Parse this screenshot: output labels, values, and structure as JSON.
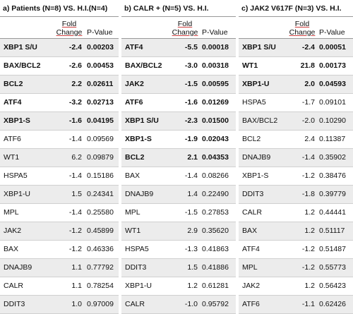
{
  "panels": [
    {
      "title": "a) Patients (N=8) VS. H.I.(N=4)",
      "fc_header": "Fold Change",
      "pv_header": "P-Value",
      "rows": [
        {
          "gene": "XBP1 S/U",
          "fc": "-2.4",
          "pv": "0.00203",
          "bold": true
        },
        {
          "gene": "BAX/BCL2",
          "fc": "-2.6",
          "pv": "0.00453",
          "bold": true
        },
        {
          "gene": "BCL2",
          "fc": "2.2",
          "pv": "0.02611",
          "bold": true
        },
        {
          "gene": "ATF4",
          "fc": "-3.2",
          "pv": "0.02713",
          "bold": true
        },
        {
          "gene": "XBP1-S",
          "fc": "-1.6",
          "pv": "0.04195",
          "bold": true
        },
        {
          "gene": "ATF6",
          "fc": "-1.4",
          "pv": "0.09569",
          "bold": false
        },
        {
          "gene": "WT1",
          "fc": "6.2",
          "pv": "0.09879",
          "bold": false
        },
        {
          "gene": "HSPA5",
          "fc": "-1.4",
          "pv": "0.15186",
          "bold": false
        },
        {
          "gene": "XBP1-U",
          "fc": "1.5",
          "pv": "0.24341",
          "bold": false
        },
        {
          "gene": "MPL",
          "fc": "-1.4",
          "pv": "0.25580",
          "bold": false
        },
        {
          "gene": "JAK2",
          "fc": "-1.2",
          "pv": "0.45899",
          "bold": false
        },
        {
          "gene": "BAX",
          "fc": "-1.2",
          "pv": "0.46336",
          "bold": false
        },
        {
          "gene": "DNAJB9",
          "fc": "1.1",
          "pv": "0.77792",
          "bold": false
        },
        {
          "gene": "CALR",
          "fc": "1.1",
          "pv": "0.78254",
          "bold": false
        },
        {
          "gene": "DDIT3",
          "fc": "1.0",
          "pv": "0.97009",
          "bold": false
        }
      ]
    },
    {
      "title": "b) CALR + (N=5) VS. H.I.",
      "fc_header": "Fold Change",
      "pv_header": "P-Value",
      "rows": [
        {
          "gene": "ATF4",
          "fc": "-5.5",
          "pv": "0.00018",
          "bold": true
        },
        {
          "gene": "BAX/BCL2",
          "fc": "-3.0",
          "pv": "0.00318",
          "bold": true
        },
        {
          "gene": "JAK2",
          "fc": "-1.5",
          "pv": "0.00595",
          "bold": true
        },
        {
          "gene": "ATF6",
          "fc": "-1.6",
          "pv": "0.01269",
          "bold": true
        },
        {
          "gene": "XBP1 S/U",
          "fc": "-2.3",
          "pv": "0.01500",
          "bold": true
        },
        {
          "gene": "XBP1-S",
          "fc": "-1.9",
          "pv": "0.02043",
          "bold": true
        },
        {
          "gene": "BCL2",
          "fc": "2.1",
          "pv": "0.04353",
          "bold": true
        },
        {
          "gene": "BAX",
          "fc": "-1.4",
          "pv": "0.08266",
          "bold": false
        },
        {
          "gene": "DNAJB9",
          "fc": "1.4",
          "pv": "0.22490",
          "bold": false
        },
        {
          "gene": "MPL",
          "fc": "-1.5",
          "pv": "0.27853",
          "bold": false
        },
        {
          "gene": "WT1",
          "fc": "2.9",
          "pv": "0.35620",
          "bold": false
        },
        {
          "gene": "HSPA5",
          "fc": "-1.3",
          "pv": "0.41863",
          "bold": false
        },
        {
          "gene": "DDIT3",
          "fc": "1.5",
          "pv": "0.41886",
          "bold": false
        },
        {
          "gene": "XBP1-U",
          "fc": "1.2",
          "pv": "0.61281",
          "bold": false
        },
        {
          "gene": "CALR",
          "fc": "-1.0",
          "pv": "0.95792",
          "bold": false
        }
      ]
    },
    {
      "title": "c) JAK2 V617F (N=3) VS. H.I.",
      "fc_header": "Fold Change",
      "pv_header": "P-Value",
      "rows": [
        {
          "gene": "XBP1 S/U",
          "fc": "-2.4",
          "pv": "0.00051",
          "bold": true
        },
        {
          "gene": "WT1",
          "fc": "21.8",
          "pv": "0.00173",
          "bold": true
        },
        {
          "gene": "XBP1-U",
          "fc": "2.0",
          "pv": "0.04593",
          "bold": true
        },
        {
          "gene": "HSPA5",
          "fc": "-1.7",
          "pv": "0.09101",
          "bold": false
        },
        {
          "gene": "BAX/BCL2",
          "fc": "-2.0",
          "pv": "0.10290",
          "bold": false
        },
        {
          "gene": "BCL2",
          "fc": "2.4",
          "pv": "0.11387",
          "bold": false
        },
        {
          "gene": "DNAJB9",
          "fc": "-1.4",
          "pv": "0.35902",
          "bold": false
        },
        {
          "gene": "XBP1-S",
          "fc": "-1.2",
          "pv": "0.38476",
          "bold": false
        },
        {
          "gene": "DDIT3",
          "fc": "-1.8",
          "pv": "0.39779",
          "bold": false
        },
        {
          "gene": "CALR",
          "fc": "1.2",
          "pv": "0.44441",
          "bold": false
        },
        {
          "gene": "BAX",
          "fc": "1.2",
          "pv": "0.51117",
          "bold": false
        },
        {
          "gene": "ATF4",
          "fc": "-1.2",
          "pv": "0.51487",
          "bold": false
        },
        {
          "gene": "MPL",
          "fc": "-1.2",
          "pv": "0.55773",
          "bold": false
        },
        {
          "gene": "JAK2",
          "fc": "1.2",
          "pv": "0.56423",
          "bold": false
        },
        {
          "gene": "ATF6",
          "fc": "-1.1",
          "pv": "0.62426",
          "bold": false
        }
      ]
    }
  ]
}
